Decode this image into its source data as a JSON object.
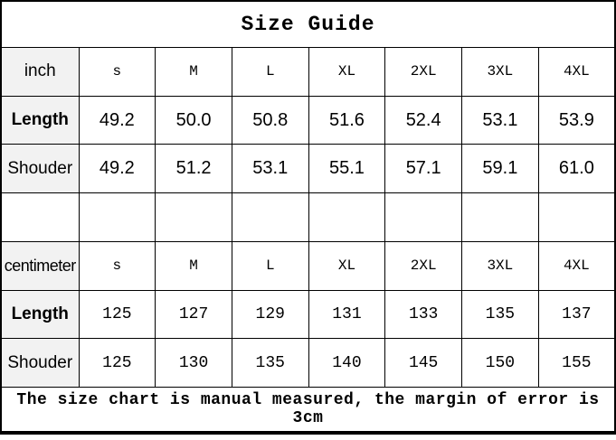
{
  "title": "Size Guide",
  "footer_note": "The size chart is manual measured, the margin of error is 3cm",
  "colors": {
    "label_column_bg": "#f2f2f2",
    "border": "#000000",
    "background": "#ffffff",
    "text": "#000000"
  },
  "sections": [
    {
      "unit": "inch",
      "sizes": [
        "s",
        "M",
        "L",
        "XL",
        "2XL",
        "3XL",
        "4XL"
      ],
      "rows": [
        {
          "label": "Length",
          "values": [
            "49.2",
            "50.0",
            "50.8",
            "51.6",
            "52.4",
            "53.1",
            "53.9"
          ]
        },
        {
          "label": "Shouder",
          "values": [
            "49.2",
            "51.2",
            "53.1",
            "55.1",
            "57.1",
            "59.1",
            "61.0"
          ]
        }
      ]
    },
    {
      "unit": "centimeter",
      "sizes": [
        "s",
        "M",
        "L",
        "XL",
        "2XL",
        "3XL",
        "4XL"
      ],
      "rows": [
        {
          "label": "Length",
          "values": [
            "125",
            "127",
            "129",
            "131",
            "133",
            "135",
            "137"
          ]
        },
        {
          "label": "Shouder",
          "values": [
            "125",
            "130",
            "135",
            "140",
            "145",
            "150",
            "155"
          ]
        }
      ]
    }
  ]
}
